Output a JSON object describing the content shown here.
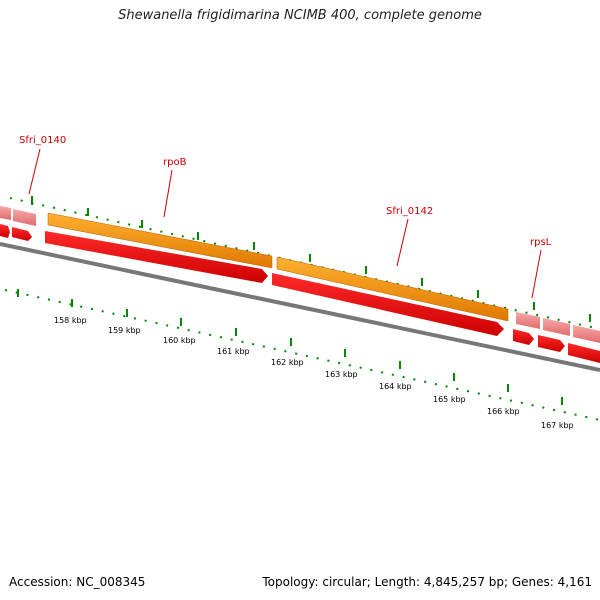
{
  "title": "Shewanella frigidimarina NCIMB 400, complete genome",
  "footer": {
    "accession": "Accession: NC_008345",
    "topology": "Topology: circular; Length: 4,845,257 bp; Genes: 4,161"
  },
  "colors": {
    "cds_forward_light": "#f08080",
    "cds_reverse": "#ee0000",
    "rna_gene": "#ff9900",
    "backbone": "#777777",
    "ticks": "#007700",
    "labels": "#cc0000"
  },
  "gene_labels": [
    "Sfri_0140",
    "rpoB",
    "Sfri_0142",
    "rpsL"
  ],
  "kbp_labels": [
    "158 kbp",
    "159 kbp",
    "160 kbp",
    "161 kbp",
    "162 kbp",
    "163 kbp",
    "164 kbp",
    "165 kbp",
    "166 kbp",
    "167 kbp"
  ]
}
